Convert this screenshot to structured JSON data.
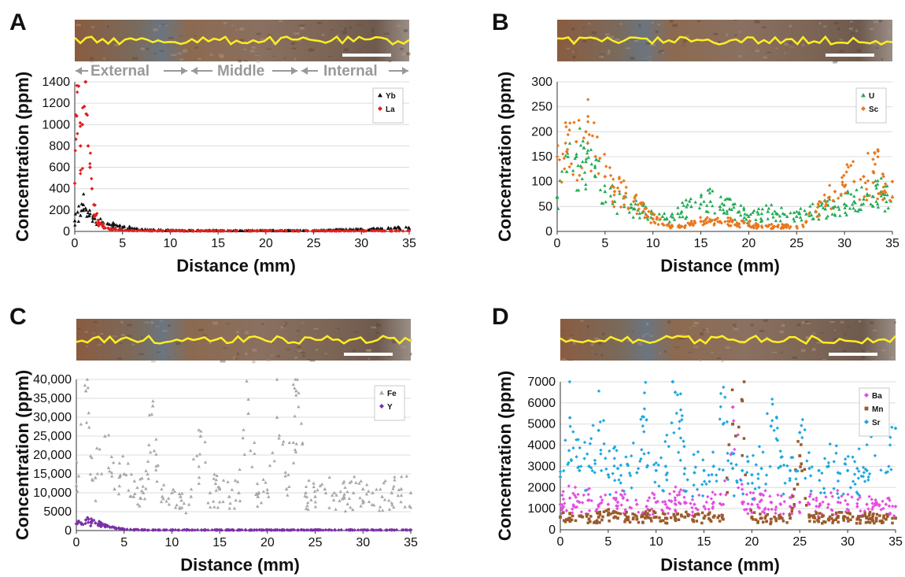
{
  "colors": {
    "Yb": "#111111",
    "La": "#e02020",
    "U": "#22aa55",
    "Sc": "#e8781e",
    "Fe": "#a8a8a8",
    "Y": "#7b2fa8",
    "Ba": "#e44ee0",
    "Mn": "#9a5a2a",
    "Sr": "#1fa8e0",
    "trace": "#ffee22",
    "scalebar": "#ffffff",
    "grid": "#dcdcdc",
    "zone_text": "#999999"
  },
  "chart_data": [
    {
      "id": "A",
      "panel_label": "A",
      "type": "scatter",
      "title": "",
      "xlabel": "Distance (mm)",
      "ylabel": "Concentration (ppm)",
      "xlim": [
        0,
        35
      ],
      "ylim": [
        0,
        1400
      ],
      "xticks": [
        0,
        5,
        10,
        15,
        20,
        25,
        30,
        35
      ],
      "yticks": [
        0,
        200,
        400,
        600,
        800,
        1000,
        1200,
        1400
      ],
      "ytick_labels": [
        "0",
        "200",
        "400",
        "600",
        "800",
        "1000",
        "1200",
        "1400"
      ],
      "legend_position": "top-right",
      "grid": "horizontal",
      "zones": [
        "External",
        "Middle",
        "Internal"
      ],
      "series": [
        {
          "name": "Yb",
          "marker": "triangle",
          "color": "#111111",
          "x": [
            0,
            0.3,
            0.6,
            0.9,
            1.2,
            1.5,
            2,
            2.5,
            3,
            3.5,
            4,
            4.5,
            5,
            6,
            7,
            8,
            9,
            10,
            12,
            14,
            16,
            18,
            20,
            22,
            24,
            26,
            28,
            30,
            32,
            34,
            35
          ],
          "y": [
            100,
            180,
            150,
            250,
            200,
            150,
            120,
            90,
            80,
            70,
            60,
            50,
            40,
            30,
            20,
            15,
            12,
            10,
            8,
            8,
            8,
            8,
            8,
            8,
            8,
            10,
            15,
            20,
            25,
            30,
            30
          ]
        },
        {
          "name": "La",
          "marker": "diamond",
          "color": "#e02020",
          "x": [
            0,
            0.2,
            0.4,
            0.6,
            0.8,
            1,
            1.2,
            1.4,
            1.6,
            1.8,
            2,
            2.2,
            2.5,
            3,
            3.5,
            4,
            5,
            6,
            8,
            10,
            15,
            20,
            25,
            30,
            35
          ],
          "y": [
            450,
            1080,
            1360,
            800,
            1000,
            1170,
            1100,
            800,
            600,
            400,
            250,
            150,
            80,
            50,
            30,
            20,
            10,
            8,
            6,
            5,
            5,
            5,
            5,
            5,
            5
          ]
        }
      ]
    },
    {
      "id": "B",
      "panel_label": "B",
      "type": "scatter",
      "title": "",
      "xlabel": "Distance (mm)",
      "ylabel": "Concentration (ppm)",
      "xlim": [
        0,
        35
      ],
      "ylim": [
        0,
        300
      ],
      "xticks": [
        0,
        5,
        10,
        15,
        20,
        25,
        30,
        35
      ],
      "yticks": [
        0,
        50,
        100,
        150,
        200,
        250,
        300
      ],
      "ytick_labels": [
        "0",
        "50",
        "100",
        "150",
        "200",
        "250",
        "300"
      ],
      "legend_position": "top-right",
      "grid": "horizontal",
      "series": [
        {
          "name": "U",
          "marker": "triangle",
          "color": "#22aa55",
          "x": [
            0,
            1,
            2,
            3,
            4,
            5,
            6,
            7,
            8,
            9,
            10,
            11,
            12,
            13,
            14,
            15,
            16,
            17,
            18,
            19,
            20,
            21,
            22,
            23,
            24,
            25,
            26,
            27,
            28,
            29,
            30,
            31,
            32,
            33,
            34,
            35
          ],
          "y": [
            70,
            120,
            150,
            140,
            110,
            80,
            60,
            50,
            45,
            40,
            35,
            30,
            35,
            40,
            50,
            55,
            60,
            50,
            45,
            40,
            30,
            35,
            40,
            35,
            30,
            30,
            35,
            40,
            45,
            50,
            55,
            60,
            65,
            70,
            75,
            70
          ]
        },
        {
          "name": "Sc",
          "marker": "diamond",
          "color": "#e8781e",
          "x": [
            0,
            1,
            2,
            3,
            4,
            5,
            6,
            7,
            8,
            9,
            10,
            11,
            12,
            13,
            14,
            15,
            16,
            17,
            18,
            19,
            20,
            21,
            22,
            23,
            24,
            25,
            26,
            27,
            28,
            29,
            30,
            31,
            32,
            33,
            34,
            35
          ],
          "y": [
            150,
            160,
            180,
            200,
            150,
            110,
            80,
            70,
            60,
            40,
            25,
            15,
            10,
            10,
            15,
            20,
            20,
            20,
            20,
            15,
            15,
            10,
            10,
            10,
            10,
            10,
            20,
            40,
            60,
            80,
            90,
            100,
            110,
            120,
            115,
            100
          ]
        }
      ]
    },
    {
      "id": "C",
      "panel_label": "C",
      "type": "scatter",
      "title": "",
      "xlabel": "Distance (mm)",
      "ylabel": "Concentration (ppm)",
      "xlim": [
        0,
        35
      ],
      "ylim": [
        0,
        40000
      ],
      "xticks": [
        0,
        5,
        10,
        15,
        20,
        25,
        30,
        35
      ],
      "yticks": [
        0,
        5000,
        10000,
        15000,
        20000,
        25000,
        30000,
        35000,
        40000
      ],
      "ytick_labels": [
        "0",
        "5000",
        "10,000",
        "15,000",
        "20,000",
        "25,000",
        "30,000",
        "35,000",
        "40,000"
      ],
      "legend_position": "top-right",
      "grid": "horizontal",
      "series": [
        {
          "name": "Fe",
          "marker": "triangle",
          "color": "#a8a8a8",
          "x": [
            0,
            1,
            2,
            3,
            4,
            5,
            6,
            7,
            8,
            9,
            10,
            11,
            12,
            13,
            14,
            15,
            16,
            17,
            18,
            19,
            20,
            21,
            22,
            23,
            24,
            25,
            26,
            27,
            28,
            29,
            30,
            31,
            32,
            33,
            34,
            35
          ],
          "y": [
            12000,
            37000,
            14000,
            25000,
            11000,
            15000,
            9000,
            10000,
            33000,
            9000,
            10000,
            8000,
            9000,
            25000,
            10000,
            11000,
            9000,
            10000,
            31000,
            9000,
            10000,
            30000,
            11000,
            37000,
            10000,
            9000,
            11000,
            10000,
            9000,
            10000,
            11000,
            10000,
            9000,
            10000,
            11000,
            10000
          ]
        },
        {
          "name": "Y",
          "marker": "diamond",
          "color": "#7b2fa8",
          "x": [
            0,
            0.5,
            1,
            1.5,
            2,
            2.5,
            3,
            3.5,
            4,
            4.5,
            5,
            6,
            8,
            10,
            15,
            20,
            25,
            30,
            35
          ],
          "y": [
            1800,
            2000,
            2800,
            2200,
            2000,
            1600,
            1200,
            900,
            700,
            500,
            300,
            200,
            150,
            150,
            150,
            150,
            150,
            150,
            150
          ]
        }
      ]
    },
    {
      "id": "D",
      "panel_label": "D",
      "type": "scatter",
      "title": "",
      "xlabel": "Distance (mm)",
      "ylabel": "Concentration (ppm)",
      "xlim": [
        0,
        35
      ],
      "ylim": [
        0,
        7000
      ],
      "xticks": [
        0,
        5,
        10,
        15,
        20,
        25,
        30,
        35
      ],
      "yticks": [
        0,
        1000,
        2000,
        3000,
        4000,
        5000,
        6000,
        7000
      ],
      "ytick_labels": [
        "0",
        "1000",
        "2000",
        "3000",
        "4000",
        "5000",
        "6000",
        "7000"
      ],
      "legend_position": "top-right",
      "grid": "horizontal",
      "series": [
        {
          "name": "Ba",
          "marker": "diamond",
          "color": "#e44ee0",
          "x": [
            0,
            1,
            2,
            3,
            4,
            5,
            6,
            7,
            8,
            9,
            10,
            11,
            12,
            13,
            14,
            15,
            16,
            17,
            18,
            19,
            20,
            21,
            22,
            23,
            24,
            25,
            26,
            27,
            28,
            29,
            30,
            31,
            32,
            33,
            34,
            35
          ],
          "y": [
            1200,
            1500,
            1300,
            1400,
            1100,
            1200,
            1300,
            1400,
            1200,
            1100,
            1300,
            1200,
            1400,
            1300,
            1200,
            1100,
            1300,
            1200,
            5800,
            1300,
            1200,
            1400,
            1300,
            1200,
            1100,
            1300,
            1200,
            1100,
            1200,
            1300,
            1200,
            1100,
            1200,
            1300,
            1200,
            1100
          ]
        },
        {
          "name": "Mn",
          "marker": "square",
          "color": "#9a5a2a",
          "x": [
            0,
            1,
            2,
            3,
            4,
            5,
            6,
            7,
            8,
            9,
            10,
            11,
            12,
            13,
            14,
            15,
            16,
            17,
            18,
            19,
            20,
            21,
            22,
            23,
            24,
            25,
            26,
            27,
            28,
            29,
            30,
            31,
            32,
            33,
            34,
            35
          ],
          "y": [
            600,
            550,
            650,
            500,
            600,
            700,
            550,
            600,
            500,
            650,
            600,
            550,
            500,
            600,
            650,
            550,
            600,
            500,
            5000,
            6100,
            600,
            550,
            500,
            600,
            550,
            3500,
            600,
            550,
            500,
            600,
            550,
            500,
            600,
            550,
            500,
            550
          ]
        },
        {
          "name": "Sr",
          "marker": "diamond",
          "color": "#1fa8e0",
          "x": [
            0,
            1,
            2,
            3,
            4,
            5,
            6,
            7,
            8,
            9,
            10,
            11,
            12,
            13,
            14,
            15,
            16,
            17,
            18,
            19,
            20,
            21,
            22,
            23,
            24,
            25,
            26,
            27,
            28,
            29,
            30,
            31,
            32,
            33,
            34,
            35
          ],
          "y": [
            2500,
            5300,
            2800,
            3000,
            4700,
            2600,
            2900,
            3100,
            2700,
            5200,
            2800,
            3000,
            6500,
            2900,
            2700,
            2800,
            3000,
            5000,
            2900,
            2800,
            2600,
            2900,
            4900,
            3000,
            2800,
            4600,
            2900,
            2800,
            3000,
            2700,
            2800,
            2900,
            2800,
            5500,
            2700,
            4800
          ]
        }
      ]
    }
  ]
}
